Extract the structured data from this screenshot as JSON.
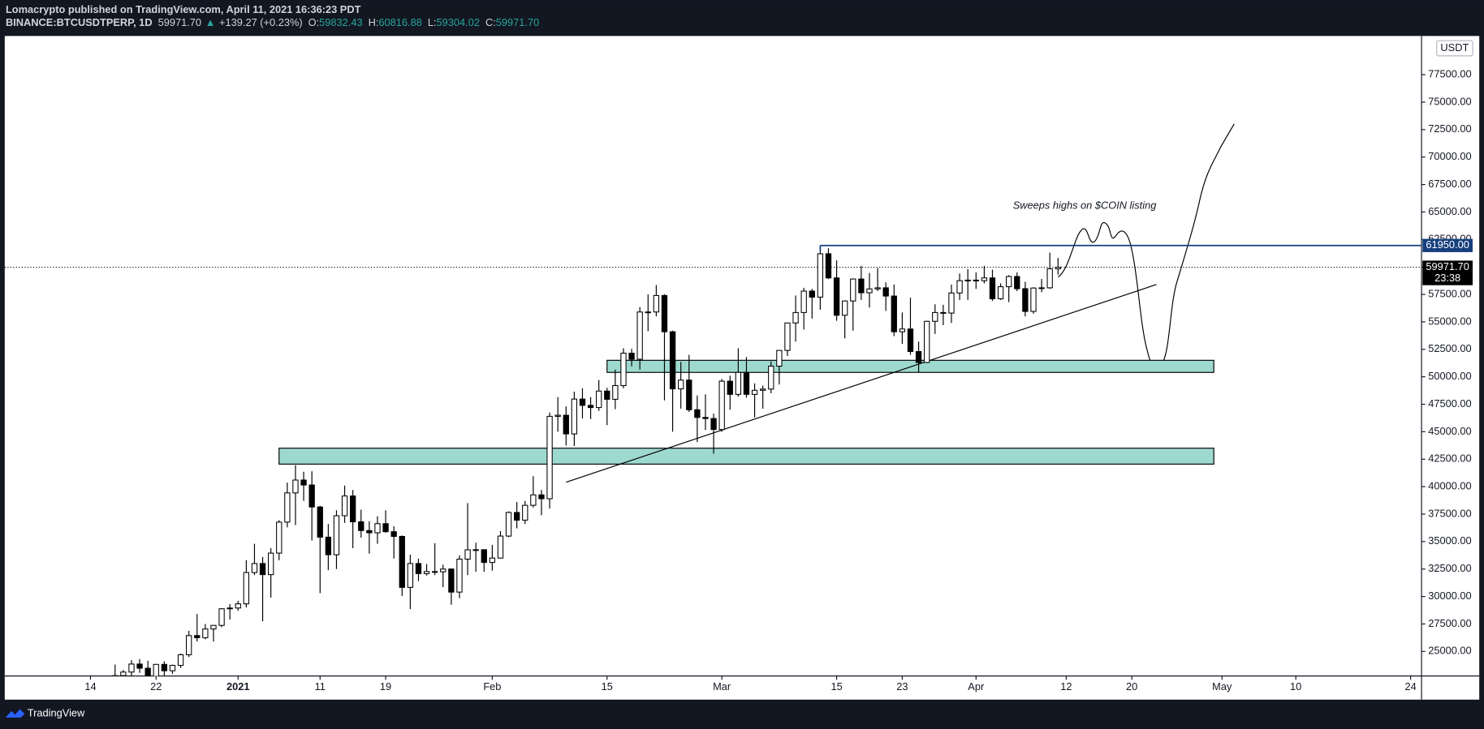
{
  "header": {
    "publisher": "Lomacrypto published on TradingView.com, April 11, 2021 16:36:23 PDT",
    "symbol": "BINANCE:BTCUSDTPERP, 1D",
    "last": "59971.70",
    "arrow": "▲",
    "change": "+139.27 (+0.23%)",
    "o_label": "O:",
    "o": "59832.43",
    "h_label": "H:",
    "h": "60816.88",
    "l_label": "L:",
    "l": "59304.02",
    "c_label": "C:",
    "c": "59971.70"
  },
  "footer": {
    "brand": "TradingView"
  },
  "chart_data": {
    "type": "candlestick",
    "currency": "USDT",
    "up_color": "#ffffff",
    "down_color": "#000000",
    "border_color": "#000000",
    "grid": false,
    "x": [
      "2020-12-17",
      "2020-12-18",
      "2020-12-19",
      "2020-12-20",
      "2020-12-21",
      "2020-12-22",
      "2020-12-23",
      "2020-12-24",
      "2020-12-25",
      "2020-12-26",
      "2020-12-27",
      "2020-12-28",
      "2020-12-29",
      "2020-12-30",
      "2020-12-31",
      "2021-01-01",
      "2021-01-02",
      "2021-01-03",
      "2021-01-04",
      "2021-01-05",
      "2021-01-06",
      "2021-01-07",
      "2021-01-08",
      "2021-01-09",
      "2021-01-10",
      "2021-01-11",
      "2021-01-12",
      "2021-01-13",
      "2021-01-14",
      "2021-01-15",
      "2021-01-16",
      "2021-01-17",
      "2021-01-18",
      "2021-01-19",
      "2021-01-20",
      "2021-01-21",
      "2021-01-22",
      "2021-01-23",
      "2021-01-24",
      "2021-01-25",
      "2021-01-26",
      "2021-01-27",
      "2021-01-28",
      "2021-01-29",
      "2021-01-30",
      "2021-01-31",
      "2021-02-01",
      "2021-02-02",
      "2021-02-03",
      "2021-02-04",
      "2021-02-05",
      "2021-02-06",
      "2021-02-07",
      "2021-02-08",
      "2021-02-09",
      "2021-02-10",
      "2021-02-11",
      "2021-02-12",
      "2021-02-13",
      "2021-02-14",
      "2021-02-15",
      "2021-02-16",
      "2021-02-17",
      "2021-02-18",
      "2021-02-19",
      "2021-02-20",
      "2021-02-21",
      "2021-02-22",
      "2021-02-23",
      "2021-02-24",
      "2021-02-25",
      "2021-02-26",
      "2021-02-27",
      "2021-02-28",
      "2021-03-01",
      "2021-03-02",
      "2021-03-03",
      "2021-03-04",
      "2021-03-05",
      "2021-03-06",
      "2021-03-07",
      "2021-03-08",
      "2021-03-09",
      "2021-03-10",
      "2021-03-11",
      "2021-03-12",
      "2021-03-13",
      "2021-03-14",
      "2021-03-15",
      "2021-03-16",
      "2021-03-17",
      "2021-03-18",
      "2021-03-19",
      "2021-03-20",
      "2021-03-21",
      "2021-03-22",
      "2021-03-23",
      "2021-03-24",
      "2021-03-25",
      "2021-03-26",
      "2021-03-27",
      "2021-03-28",
      "2021-03-29",
      "2021-03-30",
      "2021-03-31",
      "2021-04-01",
      "2021-04-02",
      "2021-04-03",
      "2021-04-04",
      "2021-04-05",
      "2021-04-06",
      "2021-04-07",
      "2021-04-08",
      "2021-04-09",
      "2021-04-10",
      "2021-04-11"
    ],
    "open": [
      21350,
      22800,
      23120,
      23850,
      23470,
      22720,
      23820,
      23240,
      23730,
      24700,
      26440,
      26250,
      27040,
      27370,
      28880,
      28950,
      29330,
      32180,
      33000,
      31990,
      33950,
      36770,
      39430,
      40600,
      40150,
      38150,
      35400,
      33800,
      37350,
      39150,
      36800,
      36000,
      35800,
      36630,
      35900,
      35470,
      30830,
      33000,
      32080,
      32270,
      32250,
      32500,
      30400,
      33400,
      34250,
      34260,
      33100,
      33500,
      35500,
      37650,
      36950,
      38300,
      39250,
      38900,
      46400,
      46500,
      44800,
      47970,
      47400,
      47200,
      48700,
      47950,
      49200,
      52150,
      51600,
      55900,
      55900,
      57400,
      54100,
      48900,
      49700,
      47000,
      46300,
      46200,
      45200,
      49600,
      48400,
      50400,
      48400,
      48770,
      48880,
      50970,
      52400,
      54900,
      55850,
      57800,
      57250,
      61200,
      59000,
      55600,
      56900,
      58900,
      57650,
      58000,
      58100,
      57350,
      54100,
      54350,
      52300,
      51300,
      55050,
      55850,
      55800,
      57630,
      58750,
      58800,
      58750,
      59000,
      57100,
      58200,
      59130,
      58020,
      55950,
      58080,
      58100,
      59832.43
    ],
    "high": [
      23800,
      23300,
      24200,
      24300,
      24150,
      23850,
      24100,
      23800,
      24800,
      26870,
      28400,
      27500,
      27400,
      28950,
      29300,
      29600,
      33300,
      34800,
      33600,
      34400,
      36950,
      40370,
      41950,
      41350,
      41400,
      38250,
      36600,
      37850,
      40100,
      39700,
      37900,
      36850,
      37300,
      37850,
      36400,
      35550,
      33800,
      33450,
      32950,
      34850,
      32900,
      32550,
      33750,
      38500,
      34900,
      34300,
      34700,
      35950,
      37750,
      38600,
      38700,
      40950,
      39700,
      46750,
      48150,
      47300,
      48650,
      48950,
      48150,
      49700,
      49000,
      50650,
      52600,
      52550,
      56350,
      57500,
      58350,
      57500,
      54200,
      51350,
      52000,
      48300,
      48400,
      46650,
      49800,
      50100,
      52600,
      51800,
      49400,
      49200,
      51400,
      52400,
      54900,
      57400,
      58100,
      58000,
      61950,
      61700,
      60600,
      56950,
      58950,
      60100,
      59450,
      59900,
      58600,
      58400,
      55850,
      57200,
      53200,
      55100,
      56600,
      56550,
      58400,
      59400,
      59800,
      59500,
      60100,
      59750,
      58500,
      59250,
      59500,
      58650,
      58150,
      58900,
      61300,
      60816.88
    ],
    "low": [
      21230,
      22350,
      22750,
      23050,
      22350,
      22600,
      22700,
      22950,
      23500,
      24500,
      25900,
      26100,
      25900,
      27200,
      27900,
      28700,
      29000,
      31950,
      27750,
      29900,
      33300,
      36300,
      36500,
      38700,
      35100,
      30300,
      32400,
      32500,
      36700,
      34400,
      35350,
      33900,
      34800,
      35800,
      33450,
      30050,
      28850,
      31400,
      31900,
      31950,
      30850,
      29250,
      29850,
      31950,
      32250,
      32250,
      32350,
      33450,
      35400,
      36200,
      36600,
      38100,
      37400,
      38000,
      45000,
      43750,
      43700,
      46200,
      46150,
      46900,
      45600,
      47050,
      48950,
      50950,
      50650,
      54150,
      55500,
      47850,
      45000,
      47100,
      46800,
      44050,
      45150,
      43000,
      45000,
      47000,
      48200,
      48100,
      46300,
      47100,
      48500,
      49300,
      51900,
      53200,
      54300,
      55300,
      56100,
      58900,
      55100,
      53500,
      54200,
      57000,
      56300,
      57800,
      56000,
      53700,
      53000,
      52000,
      50400,
      51250,
      53900,
      54700,
      54900,
      57000,
      57000,
      58000,
      58500,
      56900,
      57000,
      56800,
      57800,
      55500,
      55750,
      57700,
      58000,
      59304.02
    ],
    "close": [
      22800,
      23120,
      23850,
      23470,
      22720,
      23820,
      23240,
      23730,
      24700,
      26440,
      26250,
      27040,
      27370,
      28880,
      28950,
      29330,
      32180,
      33000,
      31990,
      33950,
      36770,
      39430,
      40600,
      40150,
      38150,
      35400,
      33800,
      37350,
      39150,
      36800,
      36000,
      35800,
      36630,
      35900,
      35470,
      30830,
      33000,
      32080,
      32270,
      32250,
      32500,
      30400,
      33400,
      34250,
      34260,
      33100,
      33500,
      35500,
      37650,
      36950,
      38300,
      39250,
      38900,
      46400,
      46500,
      44800,
      47970,
      47400,
      47200,
      48700,
      47950,
      49200,
      52150,
      51600,
      55900,
      55900,
      57400,
      54100,
      48900,
      49700,
      47000,
      46300,
      46200,
      45200,
      49600,
      48400,
      50400,
      48400,
      48770,
      48880,
      50970,
      52400,
      54900,
      55850,
      57800,
      57250,
      61200,
      59000,
      55600,
      56900,
      58900,
      57650,
      58000,
      58100,
      57350,
      54100,
      54350,
      52300,
      51300,
      55050,
      55850,
      55800,
      57630,
      58750,
      58800,
      58750,
      59000,
      57100,
      58200,
      59130,
      58020,
      55950,
      58080,
      58100,
      59832.43,
      59971.7
    ],
    "xlim": [
      "2020-12-03T13:00:00Z",
      "2021-05-25T08:00:00Z"
    ],
    "xticks": [
      {
        "value": "2020-12-14",
        "label": "14"
      },
      {
        "value": "2020-12-22",
        "label": "22"
      },
      {
        "value": "2021-01-01",
        "label": "2021"
      },
      {
        "value": "2021-01-11",
        "label": "11"
      },
      {
        "value": "2021-01-19",
        "label": "19"
      },
      {
        "value": "2021-02-01",
        "label": "Feb"
      },
      {
        "value": "2021-02-15",
        "label": "15"
      },
      {
        "value": "2021-03-01",
        "label": "Mar"
      },
      {
        "value": "2021-03-15",
        "label": "15"
      },
      {
        "value": "2021-03-23",
        "label": "23"
      },
      {
        "value": "2021-04-01",
        "label": "Apr"
      },
      {
        "value": "2021-04-12",
        "label": "12"
      },
      {
        "value": "2021-04-20",
        "label": "20"
      },
      {
        "value": "2021-05-01",
        "label": "May"
      },
      {
        "value": "2021-05-10",
        "label": "10"
      },
      {
        "value": "2021-05-24",
        "label": "24"
      }
    ],
    "ylim": [
      22762,
      81024
    ],
    "yticks": [
      {
        "value": 25000,
        "label": "25000.00"
      },
      {
        "value": 27500,
        "label": "27500.00"
      },
      {
        "value": 30000,
        "label": "30000.00"
      },
      {
        "value": 32500,
        "label": "32500.00"
      },
      {
        "value": 35000,
        "label": "35000.00"
      },
      {
        "value": 37500,
        "label": "37500.00"
      },
      {
        "value": 40000,
        "label": "40000.00"
      },
      {
        "value": 42500,
        "label": "42500.00"
      },
      {
        "value": 45000,
        "label": "45000.00"
      },
      {
        "value": 47500,
        "label": "47500.00"
      },
      {
        "value": 50000,
        "label": "50000.00"
      },
      {
        "value": 52500,
        "label": "52500.00"
      },
      {
        "value": 55000,
        "label": "55000.00"
      },
      {
        "value": 57500,
        "label": "57500.00"
      },
      {
        "value": 60000,
        "label": "60000.00"
      },
      {
        "value": 62500,
        "label": "62500.00"
      },
      {
        "value": 65000,
        "label": "65000.00"
      },
      {
        "value": 67500,
        "label": "67500.00"
      },
      {
        "value": 70000,
        "label": "70000.00"
      },
      {
        "value": 72500,
        "label": "72500.00"
      },
      {
        "value": 75000,
        "label": "75000.00"
      },
      {
        "value": 77500,
        "label": "77500.00"
      }
    ],
    "last_price": {
      "value": 59971.7,
      "label": "59971.70",
      "countdown": "23:38",
      "color": "#000000"
    },
    "drawings": {
      "hline": {
        "from": "2021-03-13",
        "value": 61950,
        "label": "61950.00",
        "color": "#173f7e"
      },
      "zones": [
        {
          "from": "2021-02-15",
          "to": "2021-04-30",
          "low": 50400,
          "high": 51500,
          "color": "#9ed9cf"
        },
        {
          "from": "2021-01-06",
          "to": "2021-04-30",
          "low": 42050,
          "high": 43500,
          "color": "#9ed9cf"
        }
      ],
      "trendline": {
        "from": "2021-02-10",
        "from_value": 40400,
        "to": "2021-04-23",
        "to_value": 58400
      },
      "note": "Sweeps highs on $COIN listing"
    }
  }
}
